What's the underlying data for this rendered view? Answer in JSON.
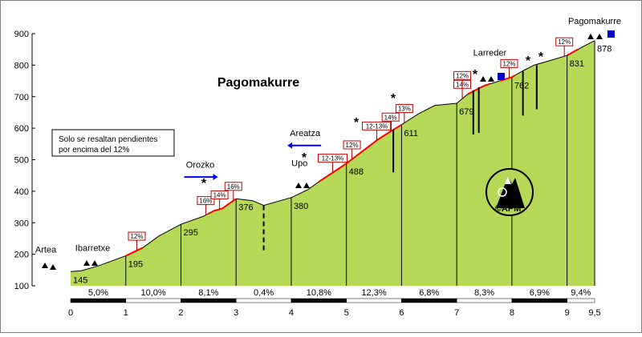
{
  "chart_data": {
    "type": "area",
    "title": "Pagomakurre",
    "note_lines": [
      "Solo se resaltan pendientes",
      "por encima del 12%"
    ],
    "xlim": [
      0,
      9.5
    ],
    "ylim": [
      100,
      900
    ],
    "x_ticks": [
      "0",
      "1",
      "2",
      "3",
      "4",
      "5",
      "6",
      "7",
      "8",
      "9",
      "9,5"
    ],
    "y_ticks": [
      "100",
      "200",
      "300",
      "400",
      "500",
      "600",
      "700",
      "800",
      "900"
    ],
    "fill_color": "#b5d957",
    "steep_color": "#ff0000",
    "profile": [
      [
        0,
        145
      ],
      [
        0.2,
        148
      ],
      [
        0.5,
        163
      ],
      [
        1,
        195
      ],
      [
        1.3,
        220
      ],
      [
        1.6,
        258
      ],
      [
        2,
        295
      ],
      [
        2.4,
        320
      ],
      [
        2.6,
        338
      ],
      [
        2.75,
        345
      ],
      [
        3,
        376
      ],
      [
        3.3,
        370
      ],
      [
        3.5,
        355
      ],
      [
        4,
        380
      ],
      [
        4.3,
        405
      ],
      [
        4.5,
        430
      ],
      [
        5,
        488
      ],
      [
        5.3,
        528
      ],
      [
        5.6,
        568
      ],
      [
        6,
        611
      ],
      [
        6.3,
        645
      ],
      [
        6.6,
        672
      ],
      [
        7,
        679
      ],
      [
        7.2,
        708
      ],
      [
        7.5,
        735
      ],
      [
        8,
        762
      ],
      [
        8.2,
        782
      ],
      [
        8.4,
        800
      ],
      [
        8.7,
        815
      ],
      [
        9,
        831
      ],
      [
        9.3,
        860
      ],
      [
        9.5,
        878
      ]
    ],
    "waypoints": [
      {
        "x": 0,
        "elev": "145"
      },
      {
        "x": 1,
        "elev": "195"
      },
      {
        "x": 2,
        "elev": "295"
      },
      {
        "x": 3,
        "elev": "376"
      },
      {
        "x": 4,
        "elev": "380"
      },
      {
        "x": 5,
        "elev": "488"
      },
      {
        "x": 6,
        "elev": "611"
      },
      {
        "x": 7,
        "elev": "679"
      },
      {
        "x": 8,
        "elev": "762"
      },
      {
        "x": 9,
        "elev": "831"
      },
      {
        "x": 9.5,
        "elev": "878"
      }
    ],
    "segments": [
      {
        "from": 0,
        "to": 1,
        "gradient": "5,0%"
      },
      {
        "from": 1,
        "to": 2,
        "gradient": "10,0%"
      },
      {
        "from": 2,
        "to": 3,
        "gradient": "8,1%"
      },
      {
        "from": 3,
        "to": 4,
        "gradient": "0,4%"
      },
      {
        "from": 4,
        "to": 5,
        "gradient": "10,8%"
      },
      {
        "from": 5,
        "to": 6,
        "gradient": "12,3%"
      },
      {
        "from": 6,
        "to": 7,
        "gradient": "6,8%"
      },
      {
        "from": 7,
        "to": 8,
        "gradient": "8,3%"
      },
      {
        "from": 8,
        "to": 9,
        "gradient": "6,9%"
      },
      {
        "from": 9,
        "to": 9.5,
        "gradient": "9,4%"
      }
    ],
    "steep_sections": [
      [
        1,
        1.3
      ],
      [
        2.5,
        3
      ],
      [
        4.5,
        6
      ],
      [
        7.2,
        7.6
      ],
      [
        7.8,
        8.05
      ],
      [
        9,
        9.2
      ]
    ],
    "steep_tags": [
      {
        "x": 1.2,
        "label": "12%"
      },
      {
        "x": 2.45,
        "label": "16%"
      },
      {
        "x": 2.7,
        "label": "14%"
      },
      {
        "x": 2.95,
        "label": "16%"
      },
      {
        "x": 4.75,
        "label": "12-13%"
      },
      {
        "x": 5.1,
        "label": "12%"
      },
      {
        "x": 5.55,
        "label": "12-13%"
      },
      {
        "x": 5.8,
        "label": "14%"
      },
      {
        "x": 6.05,
        "label": "13%"
      },
      {
        "x": 7.1,
        "label": "14%"
      },
      {
        "x": 7.1,
        "label": "12%"
      },
      {
        "x": 7.95,
        "label": "12%"
      },
      {
        "x": 8.95,
        "label": "12%"
      }
    ],
    "places": [
      {
        "name": "Artea",
        "x": -0.45,
        "elev": 205
      },
      {
        "name": "Ibarretxe",
        "x": 0.4,
        "elev": 210
      },
      {
        "name": "Orozko",
        "x": 2.35,
        "elev": 475
      },
      {
        "name": "Upo",
        "x": 4.15,
        "elev": 480
      },
      {
        "name": "Areatza",
        "x": 4.25,
        "elev": 575
      },
      {
        "name": "Larreder",
        "x": 7.6,
        "elev": 830
      },
      {
        "name": "Pagomakurre",
        "x": 9.5,
        "elev": 930
      }
    ],
    "dashed_markers": [
      {
        "x": 3.5,
        "top": 355,
        "bottom": 210
      }
    ],
    "black_lines": [
      {
        "x": 5.85,
        "top": 595,
        "bottom": 460
      },
      {
        "x": 7.3,
        "top": 720,
        "bottom": 580
      },
      {
        "x": 7.4,
        "top": 730,
        "bottom": 585
      },
      {
        "x": 8.2,
        "top": 780,
        "bottom": 640
      },
      {
        "x": 8.45,
        "top": 800,
        "bottom": 660
      }
    ],
    "logo_text": "©APM",
    "arrows": [
      {
        "x": 2.35,
        "elev": 445,
        "dir": "right",
        "color": "#0000ff"
      },
      {
        "x": 4.25,
        "elev": 545,
        "dir": "left",
        "color": "#0000ff"
      }
    ]
  }
}
